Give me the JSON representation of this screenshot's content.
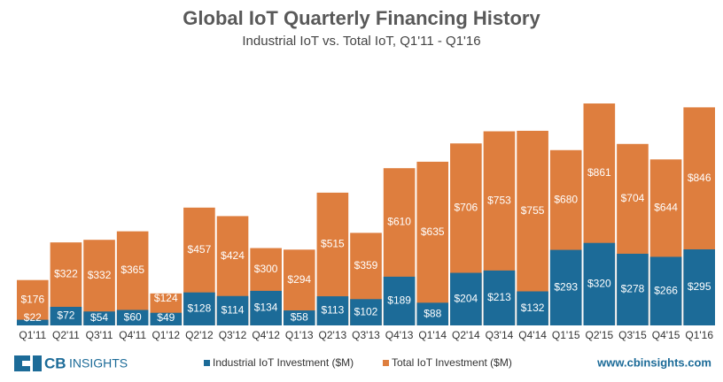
{
  "chart_data": {
    "type": "overlap_bar",
    "title": "Global IoT Quarterly Financing History",
    "subtitle": "Industrial IoT vs. Total IoT, Q1'11 - Q1'16",
    "categories": [
      "Q1'11",
      "Q2'11",
      "Q3'11",
      "Q4'11",
      "Q1'12",
      "Q2'12",
      "Q3'12",
      "Q4'12",
      "Q1'13",
      "Q2'13",
      "Q3'13",
      "Q4'13",
      "Q1'14",
      "Q2'14",
      "Q3'14",
      "Q4'14",
      "Q1'15",
      "Q2'15",
      "Q3'15",
      "Q4'15",
      "Q1'16"
    ],
    "series": [
      {
        "name": "Industrial IoT Investment ($M)",
        "color": "#1c6b98",
        "values": [
          22,
          72,
          54,
          60,
          49,
          128,
          114,
          134,
          58,
          113,
          102,
          189,
          88,
          204,
          213,
          132,
          293,
          320,
          278,
          266,
          295
        ],
        "value_labels": [
          "$22",
          "$72",
          "$54",
          "$60",
          "$49",
          "$128",
          "$114",
          "$134",
          "$58",
          "$113",
          "$102",
          "$189",
          "$88",
          "$204",
          "$213",
          "$132",
          "$293",
          "$320",
          "$278",
          "$266",
          "$295"
        ]
      },
      {
        "name": "Total IoT Investment ($M)",
        "color": "#de7e3e",
        "values": [
          176,
          322,
          332,
          365,
          124,
          457,
          424,
          300,
          294,
          515,
          359,
          610,
          635,
          706,
          753,
          755,
          680,
          861,
          704,
          644,
          846
        ],
        "value_labels": [
          "$176",
          "$322",
          "$332",
          "$365",
          "$124",
          "$457",
          "$424",
          "$300",
          "$294",
          "$515",
          "$359",
          "$610",
          "$635",
          "$706",
          "$753",
          "$755",
          "$680",
          "$861",
          "$704",
          "$644",
          "$846"
        ]
      }
    ],
    "logo": {
      "bold": "CB",
      "text": "INSIGHTS"
    },
    "website": "www.cbinsights.com"
  }
}
